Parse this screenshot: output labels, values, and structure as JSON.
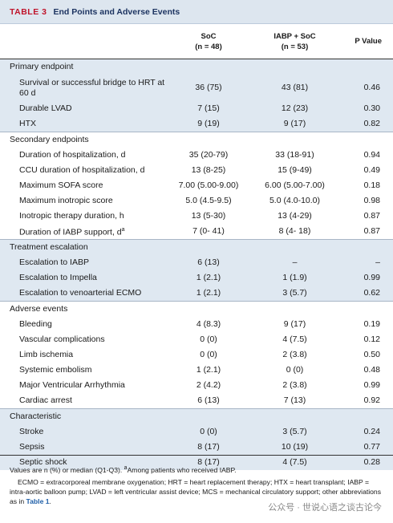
{
  "header": {
    "table_label": "TABLE 3",
    "title": "End Points and Adverse Events"
  },
  "table": {
    "columns": [
      {
        "name": "SoC",
        "n": "(n = 48)"
      },
      {
        "name": "IABP + SoC",
        "n": "(n = 53)"
      }
    ],
    "p_header": "P Value",
    "sections": [
      {
        "title": "Primary endpoint",
        "rows": [
          [
            "Survival or successful bridge to HRT at 60 d",
            "36 (75)",
            "43 (81)",
            "0.46"
          ],
          [
            "Durable LVAD",
            "7 (15)",
            "12 (23)",
            "0.30"
          ],
          [
            "HTX",
            "9 (19)",
            "9 (17)",
            "0.82"
          ]
        ]
      },
      {
        "title": "Secondary endpoints",
        "rows": [
          [
            "Duration of hospitalization, d",
            "35 (20-79)",
            "33 (18-91)",
            "0.94"
          ],
          [
            "CCU duration of hospitalization, d",
            "13 (8-25)",
            "15 (9-49)",
            "0.49"
          ],
          [
            "Maximum SOFA score",
            "7.00 (5.00-9.00)",
            "6.00 (5.00-7.00)",
            "0.18"
          ],
          [
            "Maximum inotropic score",
            "5.0 (4.5-9.5)",
            "5.0 (4.0-10.0)",
            "0.98"
          ],
          [
            "Inotropic therapy duration, h",
            "13 (5-30)",
            "13 (4-29)",
            "0.87"
          ],
          [
            {
              "text": "Duration of IABP support, d",
              "sup": "a"
            },
            "7 (0- 41)",
            "8 (4- 18)",
            "0.87"
          ]
        ]
      },
      {
        "title": "Treatment escalation",
        "rows": [
          [
            "Escalation to IABP",
            "6 (13)",
            "–",
            "–"
          ],
          [
            "Escalation to Impella",
            "1 (2.1)",
            "1 (1.9)",
            "0.99"
          ],
          [
            "Escalation to venoarterial ECMO",
            "1 (2.1)",
            "3 (5.7)",
            "0.62"
          ]
        ]
      },
      {
        "title": "Adverse events",
        "rows": [
          [
            "Bleeding",
            "4 (8.3)",
            "9 (17)",
            "0.19"
          ],
          [
            "Vascular complications",
            "0 (0)",
            "4 (7.5)",
            "0.12"
          ],
          [
            "Limb ischemia",
            "0 (0)",
            "2 (3.8)",
            "0.50"
          ],
          [
            "Systemic embolism",
            "1 (2.1)",
            "0 (0)",
            "0.48"
          ],
          [
            "Major Ventricular Arrhythmia",
            "2 (4.2)",
            "2 (3.8)",
            "0.99"
          ],
          [
            "Cardiac arrest",
            "6 (13)",
            "7 (13)",
            "0.92"
          ]
        ]
      },
      {
        "title": "Characteristic",
        "rows": [
          [
            "Stroke",
            "0 (0)",
            "3 (5.7)",
            "0.24"
          ],
          [
            "Sepsis",
            "8 (17)",
            "10 (19)",
            "0.77"
          ],
          [
            "Septic shock",
            "8 (17)",
            "4 (7.5)",
            "0.28"
          ]
        ]
      }
    ]
  },
  "footnote": {
    "line1": "Values are n (%) or median (Q1-Q3).",
    "note_mark": "a",
    "note": "Among patients who received IABP.",
    "line2": "ECMO = extracorporeal membrane oxygenation; HRT = heart replacement therapy; HTX = heart transplant; IABP = intra-aortic balloon pump; LVAD = left ventricular assist device; MCS = mechanical circulatory support; other abbreviations as in",
    "link": "Table 1",
    "end": "."
  },
  "watermark": "公众号 · 世说心语之谈古论今"
}
